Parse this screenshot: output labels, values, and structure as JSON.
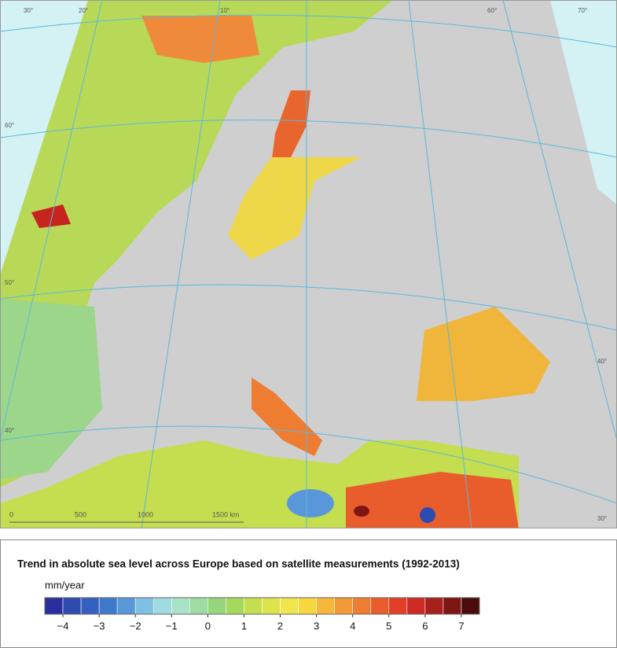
{
  "map": {
    "scale_bar": [
      "0",
      "500",
      "1000",
      "1500 km"
    ],
    "graticule_labels": [
      "30°",
      "20°",
      "10°",
      "60°",
      "70°",
      "60°",
      "50°",
      "40°",
      "40°",
      "30°"
    ]
  },
  "legend": {
    "title": "Trend in absolute sea level across Europe based on satellite measurements (1992-2013)",
    "unit": "mm/year",
    "range": [
      -4.5,
      7.5
    ],
    "colors": [
      "#2b2f9e",
      "#2e4bb0",
      "#3461c0",
      "#3f79cc",
      "#5a97d8",
      "#7fc0e3",
      "#9fdbe0",
      "#a8e3c8",
      "#9fdca4",
      "#95d67c",
      "#a6d95b",
      "#c4de4f",
      "#dde34a",
      "#eee64a",
      "#f7d640",
      "#f6b73a",
      "#f29a35",
      "#ee7c31",
      "#e95d2d",
      "#e23f28",
      "#cc2a22",
      "#a8201c",
      "#7e1614",
      "#4a0c0a"
    ],
    "ticks": [
      {
        "value": -4,
        "label": "−4"
      },
      {
        "value": -3,
        "label": "−3"
      },
      {
        "value": -2,
        "label": "−2"
      },
      {
        "value": -1,
        "label": "−1"
      },
      0,
      1,
      2,
      3,
      4,
      5,
      6,
      7
    ]
  }
}
